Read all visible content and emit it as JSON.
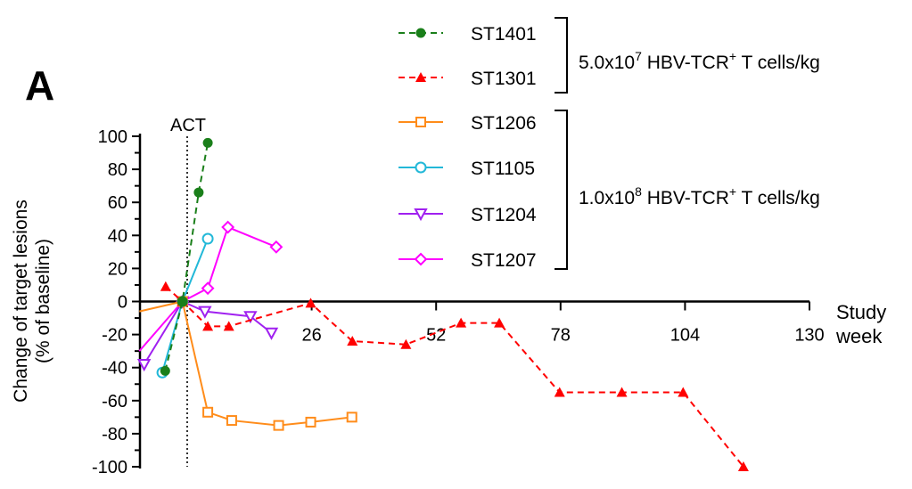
{
  "panel_label": "A",
  "chart_data": {
    "type": "line",
    "title": "",
    "xlabel": [
      "Study",
      "week"
    ],
    "ylabel": [
      "Change of target lesions",
      "(% of baseline)"
    ],
    "annotation": "ACT",
    "annotation_x": 0,
    "xlim": [
      -10,
      130
    ],
    "ylim": [
      -100,
      100
    ],
    "xticks": [
      26,
      52,
      78,
      104,
      130
    ],
    "yticks": [
      100,
      80,
      60,
      40,
      20,
      0,
      -20,
      -40,
      -60,
      -80,
      -100
    ],
    "legend_placement": "top",
    "groups": [
      {
        "label_pre": "5.0x10",
        "exp": "7",
        "label_mid": " HBV-TCR",
        "sup": "+",
        "label_post": " T cells/kg",
        "members": [
          "ST1401",
          "ST1301"
        ]
      },
      {
        "label_pre": "1.0x10",
        "exp": "8",
        "label_mid": " HBV-TCR",
        "sup": "+",
        "label_post": " T cells/kg",
        "members": [
          "ST1206",
          "ST1105",
          "ST1204",
          "ST1207"
        ]
      }
    ],
    "series": [
      {
        "name": "ST1401",
        "color": "#1a7f1a",
        "dash": true,
        "marker": "circle-filled",
        "x": [
          -4.6,
          -1,
          2.4,
          4.3
        ],
        "y": [
          -42,
          0,
          66,
          96
        ]
      },
      {
        "name": "ST1301",
        "color": "#ff0000",
        "dash": true,
        "marker": "triangle-filled",
        "x": [
          -4.5,
          -1,
          4.3,
          8.7,
          25.8,
          34.5,
          45.7,
          57.2,
          65.2,
          77.8,
          90.8,
          103.6,
          116.2
        ],
        "y": [
          9,
          0,
          -15,
          -15,
          -1,
          -24,
          -26,
          -13,
          -13,
          -55,
          -55,
          -55,
          -100
        ]
      },
      {
        "name": "ST1206",
        "color": "#ff8c1a",
        "dash": false,
        "marker": "square-open",
        "x": [
          -10,
          -1,
          4.3,
          9.3,
          19.1,
          25.8,
          34.4
        ],
        "y": [
          -6,
          0,
          -67,
          -72,
          -75,
          -73,
          -70
        ]
      },
      {
        "name": "ST1105",
        "color": "#22b8d8",
        "dash": false,
        "marker": "circle-open",
        "x": [
          -5.2,
          -1,
          4.3
        ],
        "y": [
          -43,
          0,
          38
        ]
      },
      {
        "name": "ST1204",
        "color": "#a020f0",
        "dash": false,
        "marker": "triangle-down-open",
        "x": [
          -9,
          -1,
          3.7,
          13.2,
          17.6
        ],
        "y": [
          -38,
          0,
          -6,
          -9,
          -19
        ]
      },
      {
        "name": "ST1207",
        "color": "#ff00ff",
        "dash": false,
        "marker": "diamond-open",
        "x": [
          -10,
          -1,
          4.3,
          8.5,
          18.6
        ],
        "y": [
          -30,
          0,
          8,
          45,
          33
        ]
      }
    ]
  }
}
